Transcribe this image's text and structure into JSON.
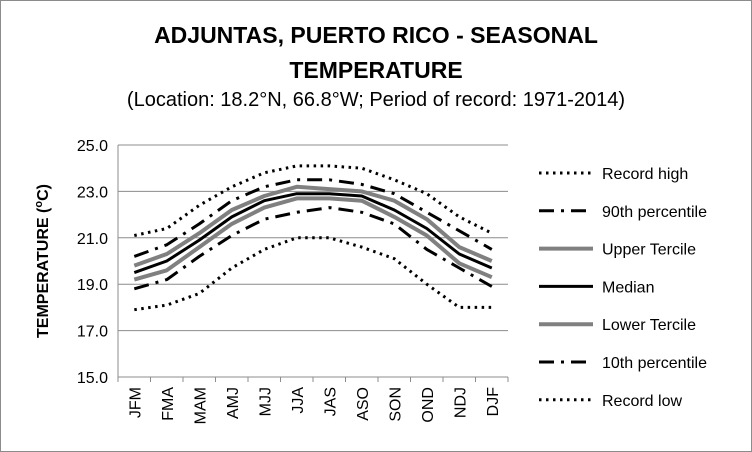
{
  "chart_data": {
    "type": "line",
    "title_line1": "ADJUNTAS, PUERTO RICO - SEASONAL",
    "title_line2": "TEMPERATURE",
    "subtitle": "(Location: 18.2°N, 66.8°W; Period of record: 1971-2014)",
    "ylabel": "TEMPERATURE (ºC)",
    "ylabel_main": "TEMPERATURE (",
    "ylabel_sup": "o",
    "ylabel_end": "C)",
    "xlabel": "",
    "ylim": [
      15.0,
      25.0
    ],
    "yticks": [
      "25.0",
      "23.0",
      "21.0",
      "19.0",
      "17.0",
      "15.0"
    ],
    "ytick_values": [
      25,
      23,
      21,
      19,
      17,
      15
    ],
    "grid": true,
    "legend_position": "right",
    "categories": [
      "JFM",
      "FMA",
      "MAM",
      "AMJ",
      "MJJ",
      "JJA",
      "JAS",
      "ASO",
      "SON",
      "OND",
      "NDJ",
      "DJF"
    ],
    "series": [
      {
        "name": "Record high",
        "style": "dotted",
        "color": "#000000",
        "values": [
          21.1,
          21.4,
          22.4,
          23.2,
          23.8,
          24.1,
          24.1,
          24.0,
          23.5,
          22.9,
          21.9,
          21.2
        ]
      },
      {
        "name": "90th percentile",
        "style": "dashdot",
        "color": "#000000",
        "values": [
          20.2,
          20.7,
          21.6,
          22.6,
          23.2,
          23.5,
          23.5,
          23.3,
          22.9,
          22.1,
          21.3,
          20.5
        ]
      },
      {
        "name": "Upper Tercile",
        "style": "solid-gray",
        "color": "#808080",
        "values": [
          19.8,
          20.3,
          21.2,
          22.2,
          22.8,
          23.2,
          23.1,
          23.0,
          22.6,
          21.8,
          20.6,
          20.0
        ]
      },
      {
        "name": "Median",
        "style": "solid-black",
        "color": "#000000",
        "values": [
          19.5,
          20.0,
          20.9,
          21.9,
          22.6,
          22.9,
          22.9,
          22.8,
          22.2,
          21.4,
          20.3,
          19.7
        ]
      },
      {
        "name": "Lower Tercile",
        "style": "solid-gray",
        "color": "#808080",
        "values": [
          19.2,
          19.6,
          20.6,
          21.6,
          22.3,
          22.7,
          22.7,
          22.6,
          21.9,
          21.1,
          19.9,
          19.3
        ]
      },
      {
        "name": "10th percentile",
        "style": "dashdot",
        "color": "#000000",
        "values": [
          18.8,
          19.2,
          20.2,
          21.1,
          21.8,
          22.1,
          22.3,
          22.1,
          21.6,
          20.5,
          19.7,
          18.9
        ]
      },
      {
        "name": "Record low",
        "style": "dotted",
        "color": "#000000",
        "values": [
          17.9,
          18.1,
          18.6,
          19.7,
          20.5,
          21.0,
          21.0,
          20.6,
          20.1,
          19.0,
          18.0,
          18.0
        ]
      }
    ]
  }
}
